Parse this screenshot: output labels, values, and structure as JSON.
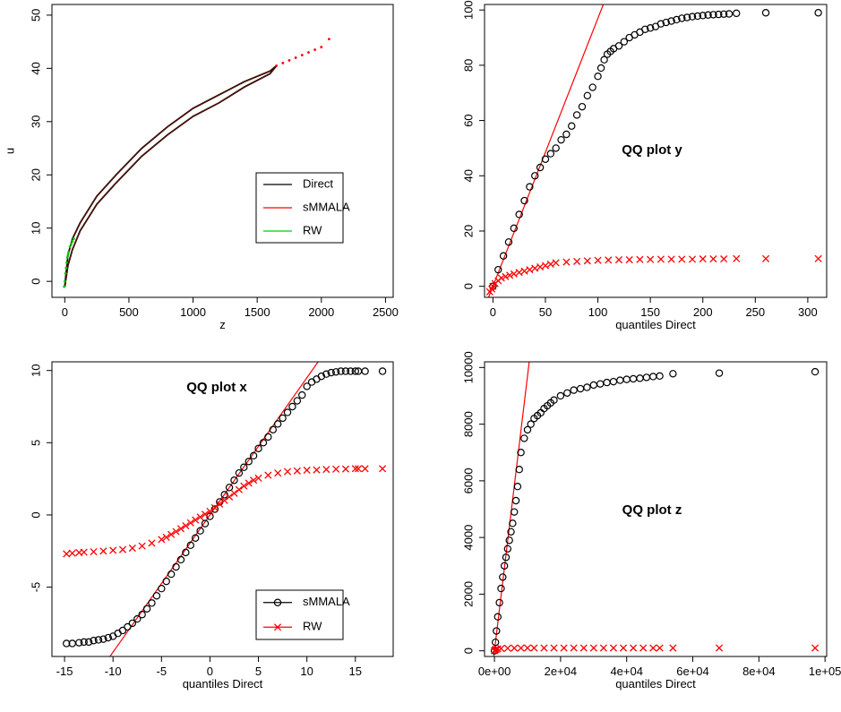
{
  "chart_data": [
    {
      "id": "p1",
      "type": "scatter",
      "title": "",
      "xlabel": "z",
      "ylabel": "u",
      "xlim": [
        -100,
        2560
      ],
      "ylim": [
        -3,
        52
      ],
      "xticks": [
        0,
        500,
        1000,
        1500,
        2000,
        2500
      ],
      "xtick_labels": [
        "0",
        "500",
        "1000",
        "1500",
        "2000",
        "2500"
      ],
      "yticks": [
        0,
        10,
        20,
        30,
        40,
        50
      ],
      "ytick_labels": [
        "0",
        "10",
        "20",
        "30",
        "40",
        "50"
      ],
      "grid": false,
      "legend": {
        "position": "center-right",
        "entries": [
          {
            "name": "Direct",
            "color": "#000000",
            "marker": "line"
          },
          {
            "name": "sMMALA",
            "color": "#ff0000",
            "marker": "line"
          },
          {
            "name": "RW",
            "color": "#00cc00",
            "marker": "line"
          }
        ]
      },
      "series": [
        {
          "name": "Direct",
          "color": "#000000",
          "style": "curve",
          "upper": {
            "x": [
              0,
              25,
              60,
              120,
              250,
              400,
              600,
              800,
              1000,
              1200,
              1400,
              1600,
              1650
            ],
            "y": [
              -1,
              5,
              8,
              11,
              16,
              20,
              25,
              29,
              32.5,
              35,
              37.5,
              39.5,
              40.5
            ]
          },
          "lower": {
            "x": [
              0,
              25,
              60,
              120,
              250,
              400,
              600,
              800,
              1000,
              1200,
              1400,
              1600,
              1650
            ],
            "y": [
              -1,
              3,
              6,
              9.5,
              14.5,
              18.5,
              23.5,
              27.5,
              31,
              33.5,
              36.5,
              39,
              40.5
            ]
          }
        },
        {
          "name": "sMMALA",
          "color": "#ff0000",
          "style": "points",
          "x": [
            1650,
            1700,
            1750,
            1800,
            1850,
            1900,
            1950,
            2000,
            2060
          ],
          "y": [
            40.5,
            41,
            41.5,
            42,
            42.5,
            43,
            43.5,
            44,
            45.5
          ]
        },
        {
          "name": "RW",
          "color": "#00cc00",
          "style": "points",
          "x": [
            -5,
            0,
            5,
            10,
            15,
            20,
            25,
            30,
            40,
            50,
            60,
            70
          ],
          "y": [
            -1,
            0,
            1.5,
            2.5,
            3.5,
            4.5,
            5,
            5.5,
            6.5,
            7,
            7.5,
            8
          ]
        }
      ]
    },
    {
      "id": "p2",
      "type": "scatter",
      "title": "QQ plot y",
      "xlabel": "quantiles Direct",
      "ylabel": "",
      "xlim": [
        -8,
        318
      ],
      "ylim": [
        -4,
        102
      ],
      "xticks": [
        0,
        50,
        100,
        150,
        200,
        250,
        300
      ],
      "xtick_labels": [
        "0",
        "50",
        "100",
        "150",
        "200",
        "250",
        "300"
      ],
      "yticks": [
        0,
        20,
        40,
        60,
        80,
        100
      ],
      "ytick_labels": [
        "0",
        "20",
        "40",
        "60",
        "80",
        "100"
      ],
      "grid": false,
      "reference_line": {
        "color": "#ff0000",
        "slope": 0.97,
        "intercept": 0
      },
      "series": [
        {
          "name": "sMMALA",
          "color": "#000000",
          "marker": "o",
          "x": [
            0,
            5,
            10,
            15,
            20,
            25,
            30,
            35,
            40,
            45,
            50,
            55,
            60,
            65,
            70,
            75,
            80,
            85,
            90,
            95,
            100,
            103,
            106,
            109,
            112,
            115,
            120,
            125,
            130,
            135,
            140,
            145,
            150,
            155,
            160,
            165,
            170,
            175,
            180,
            185,
            190,
            195,
            200,
            205,
            210,
            215,
            220,
            225,
            232,
            260,
            310
          ],
          "y": [
            0,
            6,
            11,
            16,
            21,
            26,
            31,
            36,
            40,
            43,
            46,
            48,
            50,
            53,
            55,
            58,
            62,
            65,
            69,
            72,
            76,
            79,
            82,
            84,
            85,
            86,
            87,
            88.5,
            90,
            91,
            92,
            93,
            93.5,
            94,
            95,
            95.5,
            96,
            96.5,
            97,
            97.3,
            97.6,
            97.8,
            98,
            98.2,
            98.3,
            98.4,
            98.5,
            98.6,
            98.8,
            99,
            99
          ]
        },
        {
          "name": "RW",
          "color": "#ff0000",
          "marker": "x",
          "x": [
            -3,
            -1,
            0,
            2,
            5,
            8,
            12,
            16,
            20,
            25,
            30,
            35,
            40,
            45,
            50,
            55,
            60,
            70,
            80,
            90,
            100,
            110,
            120,
            130,
            140,
            150,
            160,
            170,
            180,
            190,
            200,
            210,
            220,
            232,
            260,
            310
          ],
          "y": [
            -2,
            -1,
            0,
            1,
            2,
            3,
            3.5,
            4,
            4.5,
            5,
            5.5,
            6,
            6.5,
            7,
            7.5,
            8,
            8.5,
            8.8,
            9,
            9.2,
            9.4,
            9.5,
            9.6,
            9.6,
            9.7,
            9.7,
            9.8,
            9.8,
            9.8,
            9.8,
            9.9,
            9.9,
            9.9,
            10,
            10,
            10
          ]
        }
      ]
    },
    {
      "id": "p3",
      "type": "scatter",
      "title": "QQ plot x",
      "xlabel": "quantiles Direct",
      "ylabel": "",
      "xlim": [
        -16.3,
        18.9
      ],
      "ylim": [
        -9.8,
        10.6
      ],
      "xticks": [
        -15,
        -10,
        -5,
        0,
        5,
        10,
        15
      ],
      "xtick_labels": [
        "-15",
        "-10",
        "-5",
        "0",
        "5",
        "10",
        "15"
      ],
      "yticks": [
        -5,
        0,
        5,
        10
      ],
      "ytick_labels": [
        "-5",
        "0",
        "5",
        "10"
      ],
      "grid": false,
      "reference_line": {
        "color": "#ff0000",
        "slope": 0.95,
        "intercept": 0
      },
      "legend": {
        "position": "bottom-right",
        "entries": [
          {
            "name": "sMMALA",
            "color": "#000000",
            "marker": "o"
          },
          {
            "name": "RW",
            "color": "#ff0000",
            "marker": "x"
          }
        ]
      },
      "series": [
        {
          "name": "sMMALA",
          "color": "#000000",
          "marker": "o",
          "x": [
            -14.8,
            -14.2,
            -13.5,
            -13,
            -12.5,
            -12,
            -11.5,
            -11,
            -10.5,
            -10,
            -9.5,
            -9,
            -8.5,
            -8,
            -7.5,
            -7,
            -6.5,
            -6,
            -5.5,
            -5,
            -4.5,
            -4,
            -3.5,
            -3,
            -2.5,
            -2,
            -1.5,
            -1,
            -0.5,
            0,
            0.5,
            1,
            1.5,
            2,
            2.5,
            3,
            3.5,
            4,
            4.5,
            5,
            5.5,
            6,
            6.5,
            7,
            7.5,
            8,
            8.5,
            9,
            9.5,
            10,
            10.5,
            11,
            11.5,
            12,
            12.5,
            13,
            13.5,
            14,
            14.5,
            15,
            15.3,
            16,
            17.8
          ],
          "y": [
            -8.9,
            -8.9,
            -8.85,
            -8.8,
            -8.8,
            -8.7,
            -8.65,
            -8.6,
            -8.5,
            -8.4,
            -8.2,
            -8.0,
            -7.75,
            -7.5,
            -7.2,
            -6.9,
            -6.5,
            -6.1,
            -5.6,
            -5.1,
            -4.6,
            -4.1,
            -3.6,
            -3.1,
            -2.6,
            -2.1,
            -1.6,
            -1.1,
            -0.6,
            -0.1,
            0.4,
            0.9,
            1.4,
            1.9,
            2.4,
            2.9,
            3.3,
            3.7,
            4.1,
            4.6,
            5.0,
            5.4,
            5.9,
            6.3,
            6.7,
            7.1,
            7.5,
            7.9,
            8.3,
            8.9,
            9.2,
            9.4,
            9.6,
            9.75,
            9.85,
            9.9,
            9.95,
            9.95,
            9.95,
            9.95,
            9.95,
            9.95,
            9.95
          ]
        },
        {
          "name": "RW",
          "color": "#ff0000",
          "marker": "x",
          "x": [
            -14.8,
            -14.2,
            -13.5,
            -13,
            -12,
            -11,
            -10,
            -9,
            -8,
            -7,
            -6,
            -5,
            -4.5,
            -4,
            -3.5,
            -3,
            -2.5,
            -2,
            -1.5,
            -1,
            -0.5,
            0,
            0.5,
            1,
            1.5,
            2,
            2.5,
            3,
            3.5,
            4,
            4.5,
            5,
            6,
            7,
            8,
            9,
            10,
            11,
            12,
            13,
            14,
            15,
            15.3,
            16,
            17.8
          ],
          "y": [
            -2.7,
            -2.65,
            -2.6,
            -2.58,
            -2.55,
            -2.5,
            -2.45,
            -2.4,
            -2.3,
            -2.15,
            -1.95,
            -1.7,
            -1.55,
            -1.35,
            -1.15,
            -0.95,
            -0.75,
            -0.55,
            -0.35,
            -0.15,
            0.05,
            0.25,
            0.5,
            0.75,
            1.0,
            1.25,
            1.5,
            1.75,
            2.0,
            2.2,
            2.4,
            2.55,
            2.75,
            2.9,
            3.0,
            3.05,
            3.1,
            3.12,
            3.15,
            3.17,
            3.18,
            3.2,
            3.2,
            3.2,
            3.2
          ]
        }
      ]
    },
    {
      "id": "p4",
      "type": "scatter",
      "title": "QQ plot z",
      "xlabel": "quantiles Direct",
      "ylabel": "",
      "xlim": [
        -3000,
        100500
      ],
      "ylim": [
        -200,
        10200
      ],
      "xticks": [
        0,
        20000,
        40000,
        60000,
        80000,
        100000
      ],
      "xtick_labels": [
        "0e+00",
        "2e+04",
        "4e+04",
        "6e+04",
        "8e+04",
        "1e+05"
      ],
      "yticks": [
        0,
        2000,
        4000,
        6000,
        8000,
        10000
      ],
      "ytick_labels": [
        "0",
        "2000",
        "4000",
        "6000",
        "8000",
        "10000"
      ],
      "grid": false,
      "reference_line": {
        "color": "#ff0000",
        "slope": 0.97,
        "intercept": 0
      },
      "series": [
        {
          "name": "sMMALA",
          "color": "#000000",
          "marker": "o",
          "x": [
            0,
            300,
            600,
            1000,
            1500,
            2000,
            2500,
            3000,
            3500,
            4000,
            4500,
            5000,
            5500,
            6000,
            6500,
            7000,
            7500,
            8000,
            9000,
            10000,
            11000,
            12000,
            13000,
            14000,
            15000,
            16000,
            17000,
            18000,
            20000,
            22000,
            24000,
            26000,
            28000,
            30000,
            32000,
            34000,
            36000,
            38000,
            40000,
            42000,
            44000,
            46000,
            48000,
            50000,
            54000,
            68000,
            97000
          ],
          "y": [
            0,
            300,
            700,
            1200,
            1700,
            2200,
            2600,
            3000,
            3300,
            3600,
            3900,
            4200,
            4500,
            4900,
            5300,
            5800,
            6400,
            7000,
            7500,
            7800,
            8000,
            8200,
            8300,
            8400,
            8550,
            8650,
            8750,
            8850,
            9000,
            9100,
            9200,
            9250,
            9300,
            9380,
            9420,
            9470,
            9500,
            9550,
            9580,
            9600,
            9620,
            9650,
            9680,
            9700,
            9780,
            9800,
            9850
          ]
        },
        {
          "name": "RW",
          "color": "#ff0000",
          "marker": "x",
          "x": [
            0,
            200,
            500,
            1000,
            2000,
            4000,
            6000,
            8000,
            10000,
            12000,
            15000,
            18000,
            21000,
            24000,
            27000,
            30000,
            33000,
            36000,
            39000,
            42000,
            45000,
            48000,
            50000,
            54000,
            68000,
            97000
          ],
          "y": [
            0,
            30,
            50,
            70,
            80,
            90,
            95,
            98,
            100,
            100,
            100,
            100,
            100,
            100,
            100,
            100,
            100,
            100,
            100,
            100,
            100,
            100,
            100,
            100,
            100,
            100
          ]
        }
      ]
    }
  ]
}
